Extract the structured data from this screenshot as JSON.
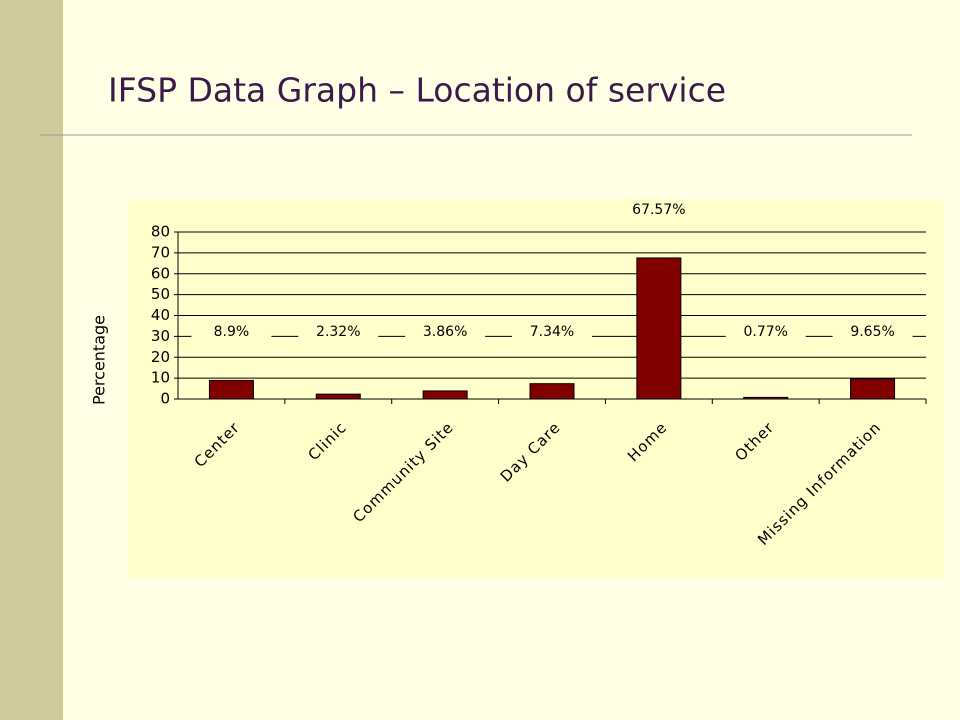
{
  "chart_data": {
    "type": "bar",
    "title": "IFSP Data Graph – Location of service",
    "y_label": "Percentage",
    "categories": [
      "Center",
      "Clinic",
      "Community Site",
      "Day Care",
      "Home",
      "Other",
      "Missing Information"
    ],
    "values": [
      8.9,
      2.32,
      3.86,
      7.34,
      67.57,
      0.77,
      9.65
    ],
    "value_labels": [
      "8.9%",
      "2.32%",
      "3.86%",
      "7.34%",
      "67.57%",
      "0.77%",
      "9.65%"
    ],
    "color": "#800000",
    "ylim": [
      0,
      80
    ],
    "yticks": [
      0,
      10,
      20,
      30,
      40,
      50,
      60,
      70,
      80
    ],
    "grid": true
  }
}
